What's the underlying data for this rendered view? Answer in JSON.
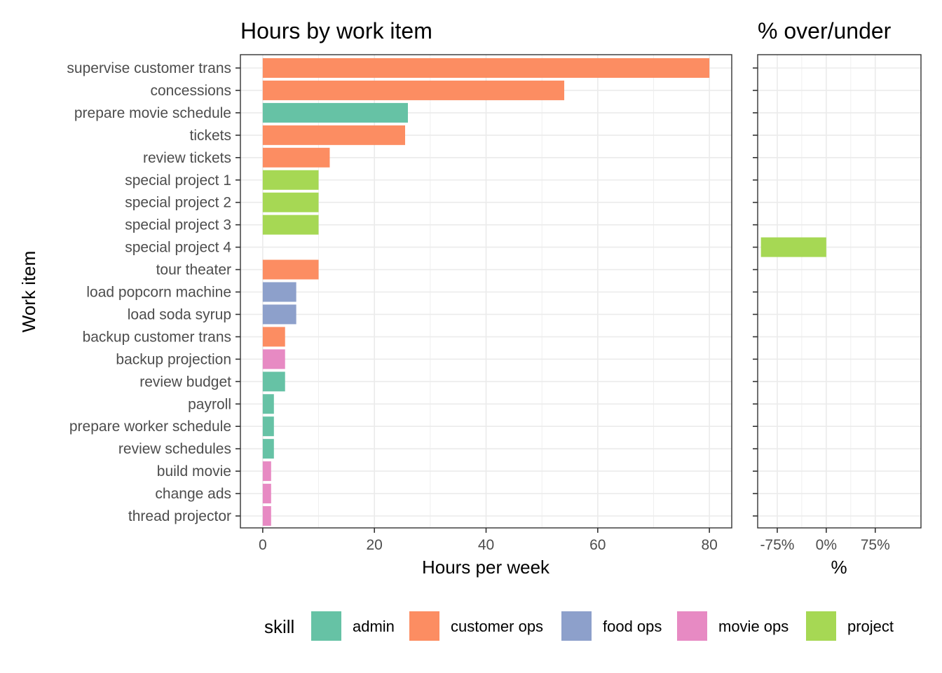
{
  "chart_data": [
    {
      "type": "bar",
      "orientation": "horizontal",
      "title": "Hours by work item",
      "xlabel": "Hours per week",
      "ylabel": "Work item",
      "xlim": [
        -4,
        84
      ],
      "xticks": [
        0,
        20,
        40,
        60,
        80
      ],
      "xtick_labels": [
        "0",
        "20",
        "40",
        "60",
        "80"
      ],
      "grid": true,
      "categories": [
        "supervise customer trans",
        "concessions",
        "prepare movie schedule",
        "tickets",
        "review tickets",
        "special project 1",
        "special project 2",
        "special project 3",
        "special project 4",
        "tour theater",
        "load popcorn machine",
        "load soda syrup",
        "backup customer trans",
        "backup projection",
        "review budget",
        "payroll",
        "prepare worker schedule",
        "review schedules",
        "build movie",
        "change ads",
        "thread projector"
      ],
      "values": [
        80,
        54,
        26,
        25.5,
        12,
        10,
        10,
        10,
        0,
        10,
        6,
        6,
        4,
        4,
        4,
        2,
        2,
        2,
        1.5,
        1.5,
        1.5
      ],
      "skill": [
        "customer ops",
        "customer ops",
        "admin",
        "customer ops",
        "customer ops",
        "project",
        "project",
        "project",
        "project",
        "customer ops",
        "food ops",
        "food ops",
        "customer ops",
        "movie ops",
        "admin",
        "admin",
        "admin",
        "admin",
        "movie ops",
        "movie ops",
        "movie ops"
      ]
    },
    {
      "type": "bar",
      "orientation": "horizontal",
      "title": "% over/under",
      "xlabel": "%",
      "xlim": [
        -1.05,
        1.45
      ],
      "xticks": [
        -0.75,
        0,
        0.75
      ],
      "xtick_labels": [
        "-75%",
        "0%",
        "75%"
      ],
      "grid": true,
      "categories_shared_with": "Hours by work item",
      "values": [
        0,
        0,
        0,
        0,
        0,
        0,
        0,
        0,
        -1.0,
        0,
        0,
        0,
        0,
        0,
        0,
        0,
        0,
        0,
        0,
        0,
        0
      ],
      "skill": [
        "customer ops",
        "customer ops",
        "admin",
        "customer ops",
        "customer ops",
        "project",
        "project",
        "project",
        "project",
        "customer ops",
        "food ops",
        "food ops",
        "customer ops",
        "movie ops",
        "admin",
        "admin",
        "admin",
        "admin",
        "movie ops",
        "movie ops",
        "movie ops"
      ]
    }
  ],
  "legend": {
    "title": "skill",
    "position": "bottom",
    "items": [
      {
        "label": "admin",
        "color": "#66c2a5"
      },
      {
        "label": "customer ops",
        "color": "#fc8d62"
      },
      {
        "label": "food ops",
        "color": "#8da0cb"
      },
      {
        "label": "movie ops",
        "color": "#e78ac3"
      },
      {
        "label": "project",
        "color": "#a6d854"
      }
    ]
  }
}
